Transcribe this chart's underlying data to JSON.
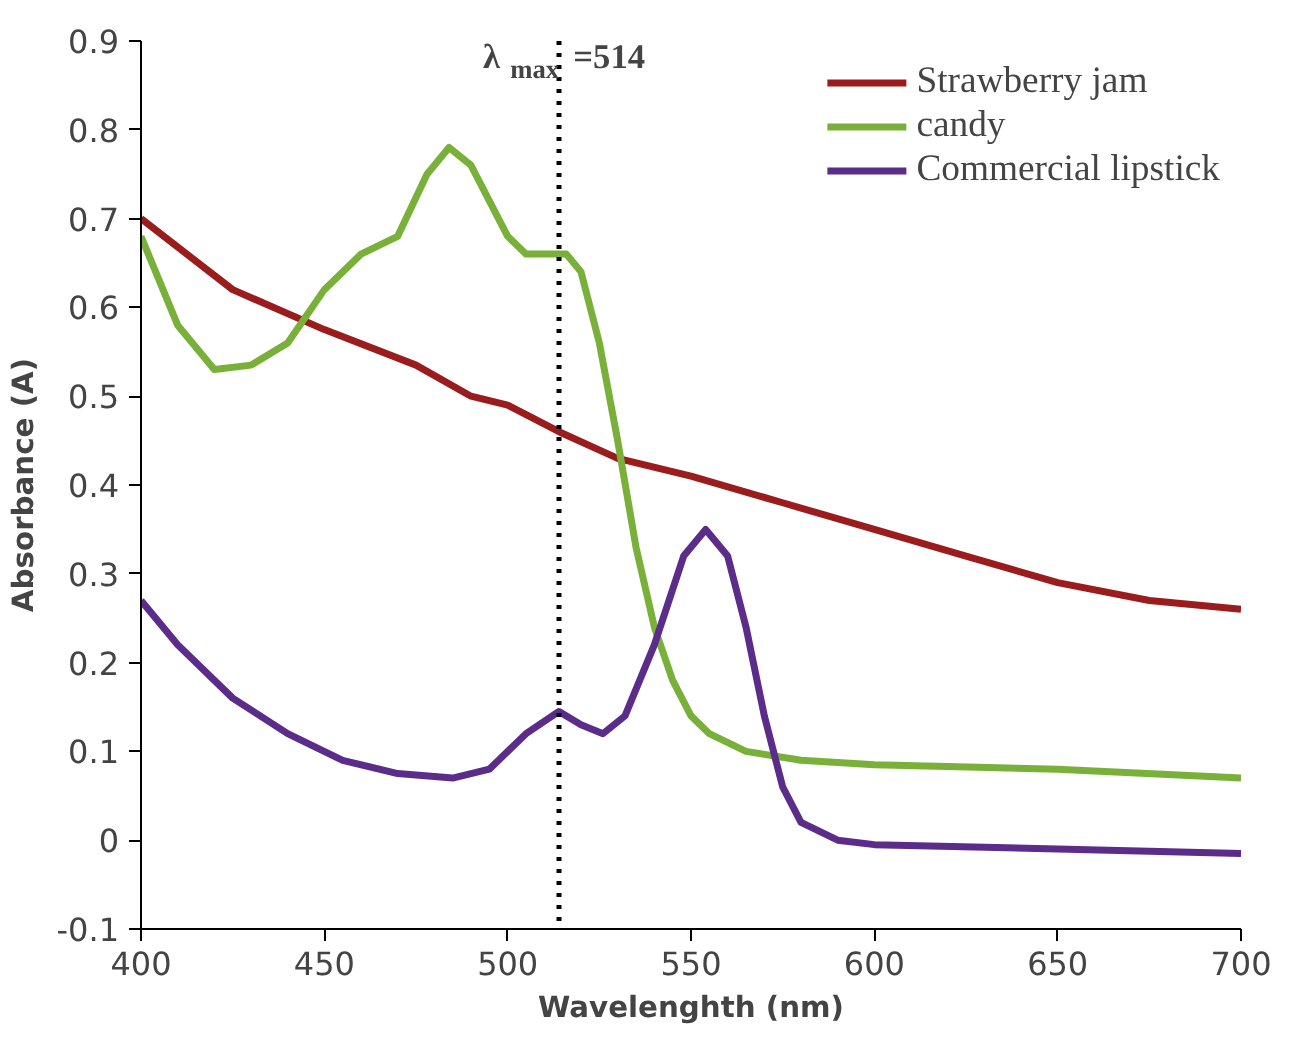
{
  "chart_data": {
    "type": "line",
    "xlabel": "Wavelenghth (nm)",
    "ylabel": "Absorbance (A)",
    "xlim": [
      400,
      700
    ],
    "xticks": [
      400,
      450,
      500,
      550,
      600,
      650,
      700
    ],
    "ylim": [
      -0.1,
      0.9
    ],
    "yticks": [
      -0.1,
      0,
      0.1,
      0.2,
      0.3,
      0.4,
      0.5,
      0.6,
      0.7,
      0.8,
      0.9
    ],
    "grid": false,
    "legend": "top right",
    "line_style": "solid",
    "ref_lines": [
      {
        "axis": "x",
        "value": 514,
        "label": "λ$_{max}$ =514",
        "line_style": "dotted",
        "color": "#000000"
      }
    ],
    "series": [
      {
        "name": "Strawberry jam",
        "color": "#9b1c1c",
        "x": [
          400,
          425,
          450,
          475,
          490,
          500,
          514,
          530,
          550,
          575,
          600,
          625,
          650,
          675,
          700
        ],
        "values": [
          0.7,
          0.62,
          0.575,
          0.535,
          0.5,
          0.49,
          0.46,
          0.43,
          0.41,
          0.38,
          0.35,
          0.32,
          0.29,
          0.27,
          0.26
        ]
      },
      {
        "name": "candy",
        "color": "#79b03a",
        "x": [
          400,
          410,
          420,
          430,
          440,
          450,
          460,
          470,
          478,
          484,
          490,
          500,
          505,
          512,
          516,
          520,
          525,
          530,
          535,
          540,
          545,
          550,
          555,
          565,
          580,
          600,
          650,
          700
        ],
        "values": [
          0.68,
          0.58,
          0.53,
          0.535,
          0.56,
          0.62,
          0.66,
          0.68,
          0.75,
          0.78,
          0.76,
          0.68,
          0.66,
          0.66,
          0.66,
          0.64,
          0.56,
          0.45,
          0.33,
          0.24,
          0.18,
          0.14,
          0.12,
          0.1,
          0.09,
          0.085,
          0.08,
          0.07
        ]
      },
      {
        "name": "Commercial lipstick",
        "color": "#5b2c8a",
        "x": [
          400,
          410,
          425,
          440,
          455,
          470,
          485,
          495,
          505,
          514,
          520,
          526,
          532,
          540,
          548,
          554,
          560,
          565,
          570,
          575,
          580,
          590,
          600,
          650,
          700
        ],
        "values": [
          0.27,
          0.22,
          0.16,
          0.12,
          0.09,
          0.075,
          0.07,
          0.08,
          0.12,
          0.145,
          0.13,
          0.12,
          0.14,
          0.22,
          0.32,
          0.35,
          0.32,
          0.24,
          0.14,
          0.06,
          0.02,
          0.0,
          -0.005,
          -0.01,
          -0.015
        ]
      }
    ]
  }
}
